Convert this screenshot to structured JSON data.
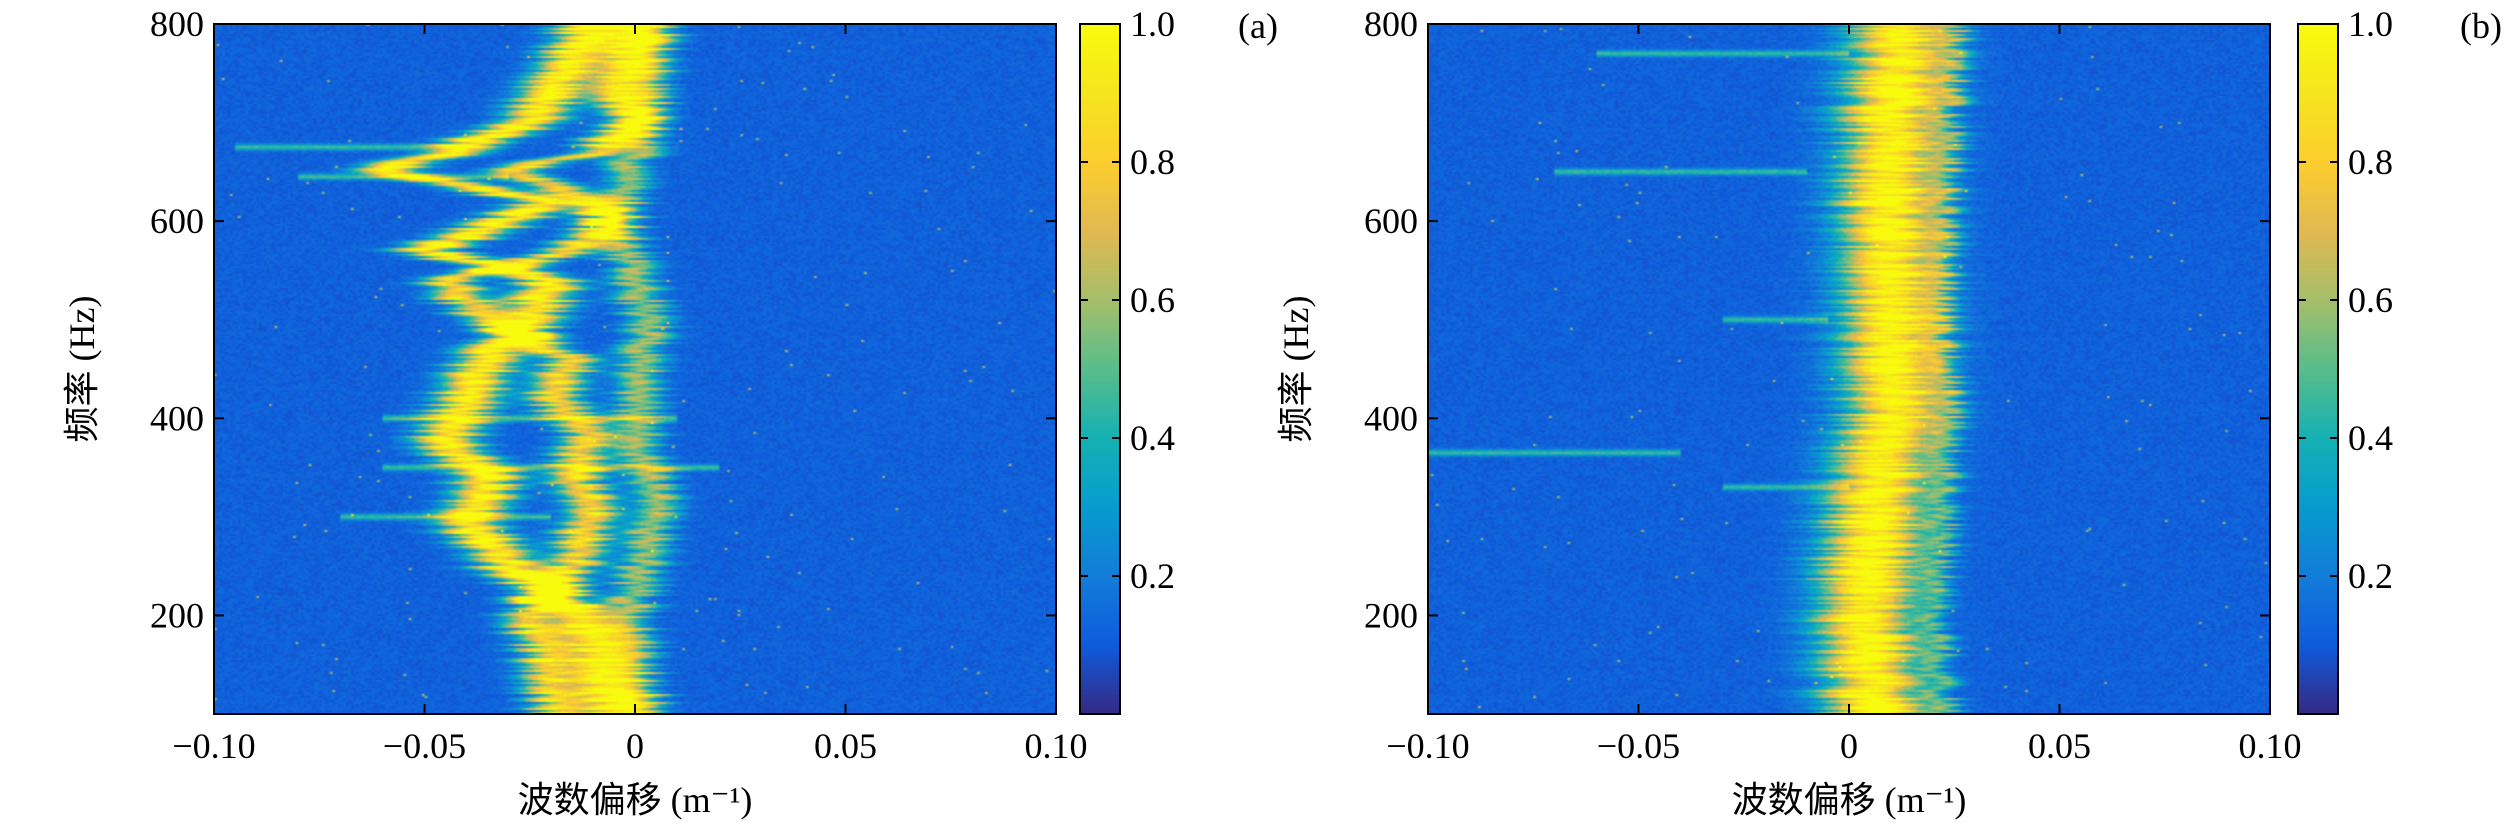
{
  "chart_data": [
    {
      "type": "heatmap",
      "panel_label": "(a)",
      "xlabel": "波数偏移 (m⁻¹)",
      "ylabel": "频率 (Hz)",
      "xlim": [
        -0.1,
        0.1
      ],
      "ylim": [
        100,
        800
      ],
      "xticks": [
        {
          "value": -0.1,
          "label": "−0.10"
        },
        {
          "value": -0.05,
          "label": "−0.05"
        },
        {
          "value": 0,
          "label": "0"
        },
        {
          "value": 0.05,
          "label": "0.05"
        },
        {
          "value": 0.1,
          "label": "0.10"
        }
      ],
      "yticks": [
        {
          "value": 200,
          "label": "200"
        },
        {
          "value": 400,
          "label": "400"
        },
        {
          "value": 600,
          "label": "600"
        },
        {
          "value": 800,
          "label": "800"
        }
      ],
      "colorbar": {
        "range": [
          0,
          1
        ],
        "ticks": [
          {
            "value": 0.2,
            "label": "0.2"
          },
          {
            "value": 0.4,
            "label": "0.4"
          },
          {
            "value": 0.6,
            "label": "0.6"
          },
          {
            "value": 0.8,
            "label": "0.8"
          },
          {
            "value": 1.0,
            "label": "1.0"
          }
        ],
        "colormap": "parula"
      },
      "ridges": [
        {
          "points": [
            [
              100,
              -0.005
            ],
            [
              150,
              -0.008
            ],
            [
              200,
              -0.012
            ],
            [
              250,
              -0.03
            ],
            [
              300,
              -0.04
            ],
            [
              340,
              -0.035
            ],
            [
              380,
              -0.045
            ],
            [
              420,
              -0.04
            ],
            [
              460,
              -0.035
            ],
            [
              500,
              -0.025
            ],
            [
              540,
              -0.02
            ],
            [
              570,
              -0.05
            ],
            [
              600,
              -0.03
            ],
            [
              620,
              -0.02
            ],
            [
              650,
              -0.06
            ],
            [
              670,
              -0.045
            ],
            [
              700,
              -0.025
            ],
            [
              730,
              -0.02
            ],
            [
              760,
              -0.015
            ],
            [
              800,
              -0.01
            ]
          ],
          "width": 0.007,
          "amp": 0.95
        },
        {
          "points": [
            [
              100,
              -0.018
            ],
            [
              150,
              -0.02
            ],
            [
              200,
              -0.025
            ],
            [
              250,
              -0.015
            ],
            [
              300,
              -0.01
            ],
            [
              340,
              -0.015
            ],
            [
              380,
              -0.01
            ],
            [
              420,
              -0.02
            ],
            [
              460,
              -0.015
            ],
            [
              500,
              -0.035
            ],
            [
              540,
              -0.045
            ],
            [
              570,
              -0.015
            ],
            [
              600,
              -0.005
            ],
            [
              620,
              -0.01
            ],
            [
              650,
              -0.03
            ],
            [
              670,
              -0.01
            ],
            [
              700,
              0.0
            ],
            [
              730,
              -0.005
            ],
            [
              760,
              -0.002
            ],
            [
              800,
              0.0
            ]
          ],
          "width": 0.006,
          "amp": 0.8
        },
        {
          "points": [
            [
              100,
              0.002
            ],
            [
              200,
              -0.002
            ],
            [
              300,
              0.005
            ],
            [
              400,
              0.0
            ],
            [
              500,
              0.003
            ],
            [
              600,
              -0.005
            ],
            [
              700,
              0.002
            ],
            [
              800,
              0.005
            ]
          ],
          "width": 0.005,
          "amp": 0.55
        }
      ],
      "streaks": [
        [
          675,
          -0.095,
          -0.04
        ],
        [
          645,
          -0.08,
          -0.03
        ],
        [
          350,
          -0.06,
          0.02
        ],
        [
          400,
          -0.06,
          0.01
        ],
        [
          300,
          -0.07,
          -0.02
        ]
      ],
      "noise_seed": 7
    },
    {
      "type": "heatmap",
      "panel_label": "(b)",
      "xlabel": "波数偏移 (m⁻¹)",
      "ylabel": "频率 (Hz)",
      "xlim": [
        -0.1,
        0.1
      ],
      "ylim": [
        100,
        800
      ],
      "xticks": [
        {
          "value": -0.1,
          "label": "−0.10"
        },
        {
          "value": -0.05,
          "label": "−0.05"
        },
        {
          "value": 0,
          "label": "0"
        },
        {
          "value": 0.05,
          "label": "0.05"
        },
        {
          "value": 0.1,
          "label": "0.10"
        }
      ],
      "yticks": [
        {
          "value": 200,
          "label": "200"
        },
        {
          "value": 400,
          "label": "400"
        },
        {
          "value": 600,
          "label": "600"
        },
        {
          "value": 800,
          "label": "800"
        }
      ],
      "colorbar": {
        "range": [
          0,
          1
        ],
        "ticks": [
          {
            "value": 0.2,
            "label": "0.2"
          },
          {
            "value": 0.4,
            "label": "0.4"
          },
          {
            "value": 0.6,
            "label": "0.6"
          },
          {
            "value": 0.8,
            "label": "0.8"
          },
          {
            "value": 1.0,
            "label": "1.0"
          }
        ],
        "colormap": "parula"
      },
      "ridges": [
        {
          "points": [
            [
              100,
              0.006
            ],
            [
              200,
              0.004
            ],
            [
              300,
              0.006
            ],
            [
              400,
              0.01
            ],
            [
              500,
              0.01
            ],
            [
              600,
              0.009
            ],
            [
              700,
              0.01
            ],
            [
              800,
              0.012
            ]
          ],
          "width": 0.011,
          "amp": 1.0
        },
        {
          "points": [
            [
              100,
              0.022
            ],
            [
              200,
              0.02
            ],
            [
              300,
              0.022
            ],
            [
              400,
              0.023
            ],
            [
              500,
              0.021
            ],
            [
              600,
              0.022
            ],
            [
              700,
              0.023
            ],
            [
              800,
              0.024
            ]
          ],
          "width": 0.003,
          "amp": 0.35
        }
      ],
      "streaks": [
        [
          500,
          -0.03,
          -0.005
        ],
        [
          650,
          -0.07,
          -0.01
        ],
        [
          365,
          -0.1,
          -0.04
        ],
        [
          330,
          -0.03,
          0.0
        ],
        [
          770,
          -0.06,
          0.0
        ]
      ],
      "noise_seed": 13
    }
  ]
}
